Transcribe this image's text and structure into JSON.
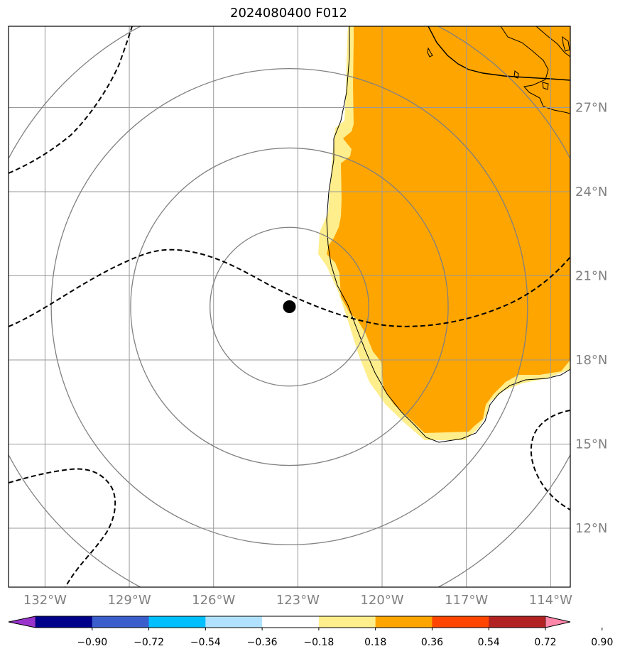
{
  "title": "2024080400 F012",
  "map": {
    "lon_labels": [
      "132°W",
      "129°W",
      "126°W",
      "123°W",
      "120°W",
      "117°W",
      "114°W"
    ],
    "lat_labels": [
      "27°N",
      "24°N",
      "21°N",
      "18°N",
      "15°N",
      "12°N"
    ],
    "lon_range": [
      -133.3,
      -113.3
    ],
    "lat_range": [
      9.9,
      29.9
    ],
    "storm_center": {
      "lon": -123.3,
      "lat": 19.9
    },
    "range_rings": 4,
    "land_fill_color": "#FFA500",
    "fringe_fill_color": "#FFEE8C",
    "storm_marker_color": "#000000"
  },
  "colorbar": {
    "ticks": [
      "−0.90",
      "−0.72",
      "−0.54",
      "−0.36",
      "−0.18",
      "0.18",
      "0.36",
      "0.54",
      "0.72",
      "0.90"
    ],
    "colors": [
      "#9933CC",
      "#00008B",
      "#3A5FCD",
      "#00BFFF",
      "#B0E2FF",
      "#FFFFFF",
      "#FFEE8C",
      "#FFA500",
      "#FF4500",
      "#B22222",
      "#FF88AA"
    ]
  }
}
